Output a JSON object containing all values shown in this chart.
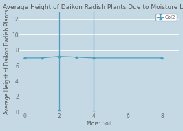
{
  "title": "Average Height of Daikon Radish Plants Due to Moisture Level",
  "xlabel": "Mois: Soil",
  "ylabel": "Average Height of Daikon Radish Plants",
  "legend_label": "Col2",
  "background_color": "#c5d9e5",
  "line_color": "#4a9fc0",
  "x_values": [
    0,
    1,
    2,
    3,
    4,
    8
  ],
  "y_values": [
    7,
    7,
    7.2,
    7.1,
    7.0,
    7.0
  ],
  "yerr_low": [
    0,
    0,
    7.0,
    0,
    7.0,
    0
  ],
  "yerr_high": [
    0,
    0,
    26,
    0,
    24,
    0
  ],
  "xlim": [
    -0.3,
    9
  ],
  "ylim": [
    0,
    13
  ],
  "yticks": [
    0,
    2,
    4,
    6,
    8,
    10,
    12
  ],
  "xticks": [
    0,
    2,
    4,
    6,
    8
  ],
  "title_fontsize": 6.5,
  "label_fontsize": 5.5,
  "tick_fontsize": 5.5
}
